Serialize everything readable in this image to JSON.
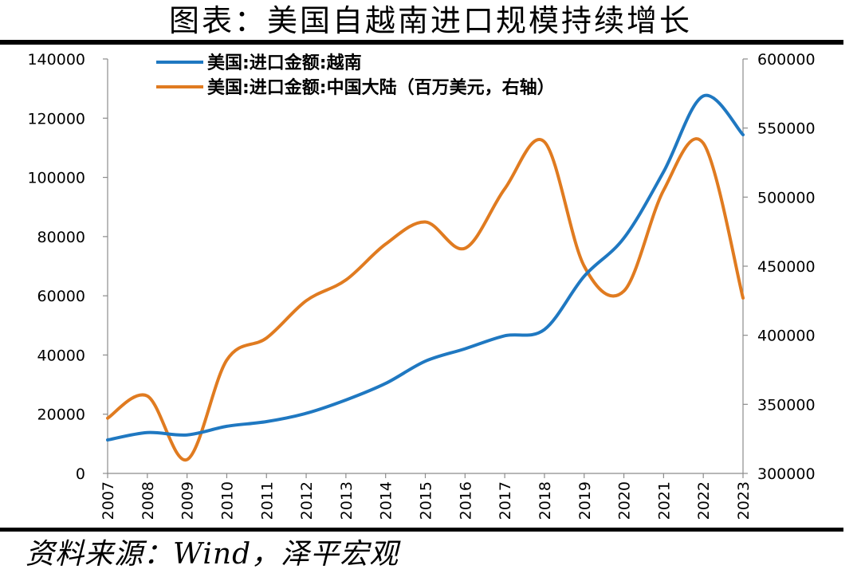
{
  "header": {
    "title": "图表：美国自越南进口规模持续增长"
  },
  "footer": {
    "source": "资料来源：Wind，泽平宏观"
  },
  "chart_data": {
    "type": "line",
    "title": "图表：美国自越南进口规模持续增长",
    "x": [
      "2007",
      "2008",
      "2009",
      "2010",
      "2011",
      "2012",
      "2013",
      "2014",
      "2015",
      "2016",
      "2017",
      "2018",
      "2019",
      "2020",
      "2021",
      "2022",
      "2023"
    ],
    "y_left": {
      "ylim": [
        0,
        140000
      ],
      "ticks": [
        0,
        20000,
        40000,
        60000,
        80000,
        100000,
        120000,
        140000
      ]
    },
    "y_right": {
      "ylim": [
        300000,
        600000
      ],
      "ticks": [
        300000,
        350000,
        400000,
        450000,
        500000,
        550000,
        600000
      ]
    },
    "legend_position": "top-left",
    "grid": false,
    "series": [
      {
        "name": "美国:进口金额:越南",
        "axis": "left",
        "color": "#1f78c1",
        "values": [
          11300,
          13800,
          13000,
          15900,
          17500,
          20300,
          24800,
          30400,
          37900,
          42100,
          46500,
          48600,
          66600,
          79500,
          101900,
          127500,
          114400
        ]
      },
      {
        "name": "美国:进口金额:中国大陆（百万美元，右轴）",
        "axis": "right",
        "color": "#e07b20",
        "values": [
          340000,
          356000,
          310000,
          382000,
          398000,
          425000,
          440000,
          466000,
          482000,
          463000,
          506000,
          540000,
          450000,
          432000,
          505000,
          539000,
          427000
        ]
      }
    ]
  }
}
